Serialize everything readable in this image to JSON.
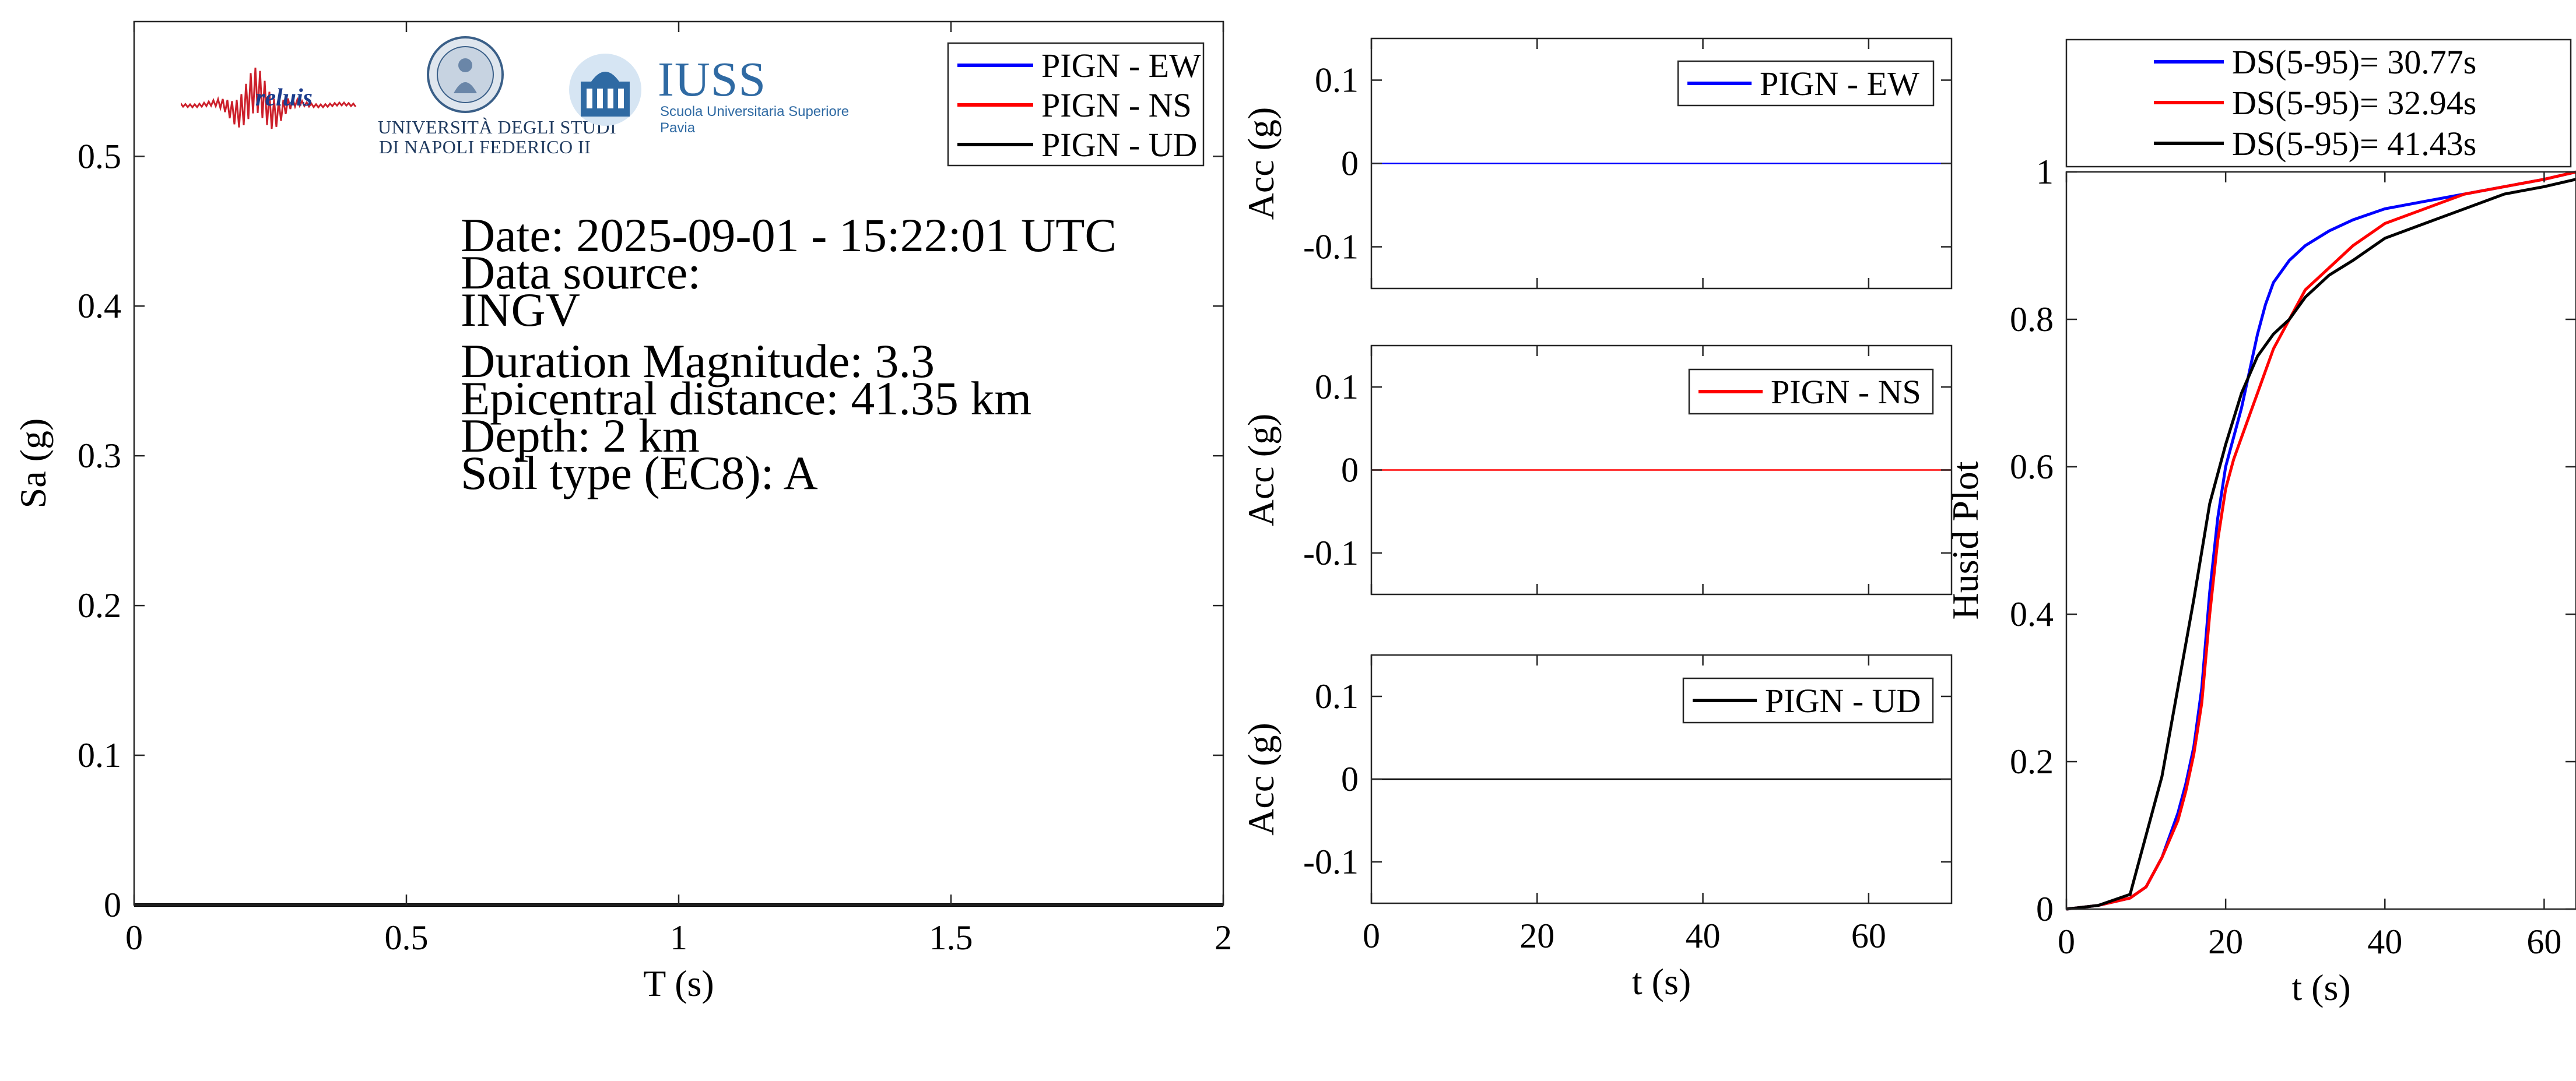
{
  "colors": {
    "ew": "#0000ff",
    "ns": "#ff0000",
    "ud": "#000000",
    "axis": "#262626"
  },
  "info": {
    "date": "Date: 2025-09-01 - 15:22:01 UTC",
    "source_label": "Data source:",
    "source": "INGV",
    "magnitude": "Duration Magnitude: 3.3",
    "distance": "Epicentral distance: 41.35 km",
    "depth": "Depth: 2 km",
    "soil": "Soil type (EC8): A"
  },
  "logos": {
    "reluis": "reluis",
    "unina_line1": "UNIVERSITÀ DEGLI STUDI",
    "unina_line2": "DI NAPOLI FEDERICO II",
    "iuss": "IUSS",
    "iuss_sub": "Scuola Universitaria Superiore Pavia"
  },
  "chart_data": [
    {
      "type": "line",
      "xlabel": "T (s)",
      "ylabel": "Sa (g)",
      "xlim": [
        0,
        2
      ],
      "ylim": [
        0,
        0.59
      ],
      "xticks": [
        0,
        0.5,
        1,
        1.5,
        2
      ],
      "xtick_labels": [
        "0",
        "0.5",
        "1",
        "1.5",
        "2"
      ],
      "yticks": [
        0,
        0.1,
        0.2,
        0.3,
        0.4,
        0.5
      ],
      "ytick_labels": [
        "0",
        "0.1",
        "0.2",
        "0.3",
        "0.4",
        "0.5"
      ],
      "legend": "top-right",
      "series": [
        {
          "name": "PIGN - EW",
          "color": "#0000ff",
          "x": [
            0,
            2
          ],
          "y": [
            0,
            0
          ]
        },
        {
          "name": "PIGN - NS",
          "color": "#ff0000",
          "x": [
            0,
            2
          ],
          "y": [
            0,
            0
          ]
        },
        {
          "name": "PIGN - UD",
          "color": "#000000",
          "x": [
            0,
            2
          ],
          "y": [
            0,
            0
          ]
        }
      ]
    },
    {
      "type": "line",
      "xlabel": "",
      "ylabel": "Acc (g)",
      "xlim": [
        0,
        70
      ],
      "ylim": [
        -0.15,
        0.15
      ],
      "yticks": [
        -0.1,
        0,
        0.1
      ],
      "ytick_labels": [
        "-0.1",
        "0",
        "0.1"
      ],
      "xticks": [
        0,
        20,
        40,
        60
      ],
      "xtick_labels": [],
      "legend": "top-right",
      "series": [
        {
          "name": "PIGN - EW",
          "color": "#0000ff",
          "x": [
            0,
            70
          ],
          "y": [
            0,
            0
          ]
        }
      ]
    },
    {
      "type": "line",
      "xlabel": "",
      "ylabel": "Acc (g)",
      "xlim": [
        0,
        70
      ],
      "ylim": [
        -0.15,
        0.15
      ],
      "yticks": [
        -0.1,
        0,
        0.1
      ],
      "ytick_labels": [
        "-0.1",
        "0",
        "0.1"
      ],
      "xticks": [
        0,
        20,
        40,
        60
      ],
      "xtick_labels": [],
      "legend": "top-right",
      "series": [
        {
          "name": "PIGN - NS",
          "color": "#ff0000",
          "x": [
            0,
            70
          ],
          "y": [
            0,
            0
          ]
        }
      ]
    },
    {
      "type": "line",
      "xlabel": "t (s)",
      "ylabel": "Acc (g)",
      "xlim": [
        0,
        70
      ],
      "ylim": [
        -0.15,
        0.15
      ],
      "yticks": [
        -0.1,
        0,
        0.1
      ],
      "ytick_labels": [
        "-0.1",
        "0",
        "0.1"
      ],
      "xticks": [
        0,
        20,
        40,
        60
      ],
      "xtick_labels": [
        "0",
        "20",
        "40",
        "60"
      ],
      "legend": "top-right",
      "series": [
        {
          "name": "PIGN - UD",
          "color": "#000000",
          "x": [
            0,
            70
          ],
          "y": [
            0,
            0
          ]
        }
      ]
    },
    {
      "type": "line",
      "xlabel": "t (s)",
      "ylabel": "Husid Plot",
      "xlim": [
        0,
        64
      ],
      "ylim": [
        0,
        1
      ],
      "xticks": [
        0,
        20,
        40,
        60
      ],
      "xtick_labels": [
        "0",
        "20",
        "40",
        "60"
      ],
      "yticks": [
        0,
        0.2,
        0.4,
        0.6,
        0.8,
        1
      ],
      "ytick_labels": [
        "0",
        "0.2",
        "0.4",
        "0.6",
        "0.8",
        "1"
      ],
      "legend": "top (outside)",
      "series": [
        {
          "name": "DS(5-95)= 30.77s",
          "color": "#0000ff",
          "x": [
            0,
            4,
            8,
            10,
            12,
            14,
            15,
            16,
            17,
            18,
            19,
            20,
            21,
            22,
            23,
            24,
            25,
            26,
            28,
            30,
            33,
            36,
            40,
            45,
            50,
            55,
            60,
            64
          ],
          "y": [
            0,
            0.005,
            0.015,
            0.03,
            0.07,
            0.13,
            0.17,
            0.22,
            0.3,
            0.43,
            0.53,
            0.6,
            0.64,
            0.68,
            0.73,
            0.78,
            0.82,
            0.85,
            0.88,
            0.9,
            0.92,
            0.935,
            0.95,
            0.96,
            0.97,
            0.98,
            0.99,
            1.0
          ]
        },
        {
          "name": "DS(5-95)= 32.94s",
          "color": "#ff0000",
          "x": [
            0,
            4,
            8,
            10,
            12,
            14,
            15,
            16,
            17,
            18,
            19,
            20,
            21,
            22,
            23,
            24,
            25,
            26,
            28,
            30,
            33,
            36,
            40,
            45,
            50,
            55,
            60,
            64
          ],
          "y": [
            0,
            0.005,
            0.015,
            0.03,
            0.07,
            0.12,
            0.16,
            0.21,
            0.28,
            0.4,
            0.5,
            0.57,
            0.61,
            0.64,
            0.67,
            0.7,
            0.73,
            0.76,
            0.8,
            0.84,
            0.87,
            0.9,
            0.93,
            0.95,
            0.97,
            0.98,
            0.99,
            1.0
          ]
        },
        {
          "name": "DS(5-95)= 41.43s",
          "color": "#000000",
          "x": [
            0,
            4,
            8,
            9,
            10,
            12,
            14,
            16,
            18,
            20,
            22,
            24,
            26,
            28,
            30,
            33,
            36,
            40,
            45,
            50,
            55,
            60,
            64
          ],
          "y": [
            0,
            0.005,
            0.02,
            0.06,
            0.1,
            0.18,
            0.3,
            0.42,
            0.55,
            0.63,
            0.7,
            0.75,
            0.78,
            0.8,
            0.83,
            0.86,
            0.88,
            0.91,
            0.93,
            0.95,
            0.97,
            0.98,
            0.99
          ]
        }
      ]
    }
  ]
}
